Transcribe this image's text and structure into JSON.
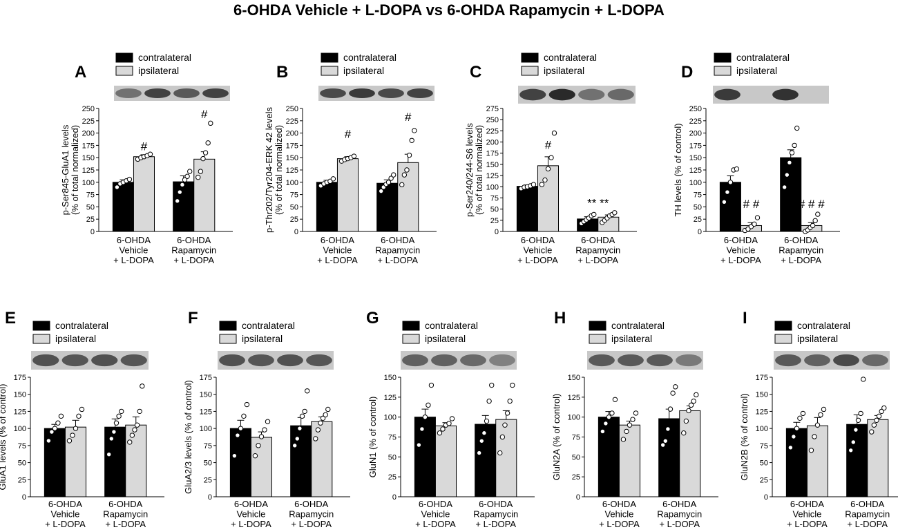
{
  "title": "6-OHDA Vehicle + L-DOPA vs 6-OHDA Rapamycin + L-DOPA",
  "legend": {
    "contralateral": "contralateral",
    "ipsilateral": "ipsilateral"
  },
  "colors": {
    "contralateral": "#000000",
    "ipsilateral": "#d9d9d9",
    "blot_bg": "#c8c8c8",
    "blot_band": "#2a2a2a"
  },
  "group_labels": [
    [
      "6-OHDA",
      "Vehicle",
      "+ L-DOPA"
    ],
    [
      "6-OHDA",
      "Rapamycin",
      "+ L-DOPA"
    ]
  ],
  "chart_data": [
    {
      "letter": "A",
      "type": "bar",
      "ylabel": [
        "p-Ser845-GluA1 levels",
        "(% of total normalized)"
      ],
      "ylim": [
        0,
        250
      ],
      "ticks": [
        0,
        25,
        50,
        75,
        100,
        125,
        150,
        175,
        200,
        225,
        250
      ],
      "blot": [
        0.55,
        0.85,
        0.7,
        0.85
      ],
      "series": [
        {
          "name": "contralateral",
          "values": [
            100,
            101
          ],
          "errors": [
            5,
            12
          ],
          "points": [
            [
              90,
              97,
              100,
              103,
              106
            ],
            [
              62,
              80,
              95,
              105,
              112,
              122
            ]
          ]
        },
        {
          "name": "ipsilateral",
          "values": [
            152,
            147
          ],
          "errors": [
            4,
            15
          ],
          "points": [
            [
              147,
              150,
              152,
              154,
              157
            ],
            [
              110,
              122,
              148,
              160,
              180,
              220
            ]
          ]
        }
      ],
      "annotations": [
        {
          "text": "#",
          "group": 0,
          "series": 1,
          "y": 165
        },
        {
          "text": "#",
          "group": 1,
          "series": 1,
          "y": 230
        }
      ]
    },
    {
      "letter": "B",
      "type": "bar",
      "ylabel": [
        "p-Thr202/Tyr204-ERK 42 levels",
        "(% of total normalized)"
      ],
      "ylim": [
        0,
        250
      ],
      "ticks": [
        0,
        25,
        50,
        75,
        100,
        125,
        150,
        175,
        200,
        225,
        250
      ],
      "blot": [
        0.8,
        0.9,
        0.8,
        0.85
      ],
      "series": [
        {
          "name": "contralateral",
          "values": [
            100,
            98
          ],
          "errors": [
            4,
            7
          ],
          "points": [
            [
              93,
              97,
              100,
              102,
              107
            ],
            [
              82,
              90,
              96,
              100,
              108,
              115
            ]
          ]
        },
        {
          "name": "ipsilateral",
          "values": [
            148,
            140
          ],
          "errors": [
            4,
            17
          ],
          "points": [
            [
              143,
              146,
              148,
              150,
              153
            ],
            [
              95,
              115,
              125,
              155,
              185,
              205
            ]
          ]
        }
      ],
      "annotations": [
        {
          "text": "#",
          "group": 0,
          "series": 1,
          "y": 190
        },
        {
          "text": "#",
          "group": 1,
          "series": 1,
          "y": 225
        }
      ]
    },
    {
      "letter": "C",
      "type": "bar",
      "ylabel": [
        "p-Ser240/244-S6 levels",
        "(% of total normalized)"
      ],
      "ylim": [
        0,
        275
      ],
      "ticks": [
        0,
        25,
        50,
        75,
        100,
        125,
        150,
        175,
        200,
        225,
        250,
        275
      ],
      "blot": [
        0.85,
        1.0,
        0.55,
        0.6
      ],
      "series": [
        {
          "name": "contralateral",
          "values": [
            101,
            28
          ],
          "errors": [
            3,
            5
          ],
          "points": [
            [
              96,
              99,
              100,
              102,
              105
            ],
            [
              18,
              22,
              26,
              30,
              35,
              38
            ]
          ]
        },
        {
          "name": "ipsilateral",
          "values": [
            147,
            32
          ],
          "errors": [
            20,
            5
          ],
          "points": [
            [
              105,
              115,
              140,
              165,
              220
            ],
            [
              20,
              25,
              30,
              35,
              38,
              42
            ]
          ]
        }
      ],
      "annotations": [
        {
          "text": "#",
          "group": 0,
          "series": 1,
          "y": 185
        },
        {
          "text": "** **",
          "group": 1,
          "series": 0.5,
          "y": 55
        }
      ]
    },
    {
      "letter": "D",
      "type": "bar",
      "ylabel": [
        "TH levels (% of control)"
      ],
      "ylim": [
        0,
        250
      ],
      "ticks": [
        0,
        25,
        50,
        75,
        100,
        125,
        150,
        175,
        200,
        225,
        250
      ],
      "blot": [
        0.9,
        0.05,
        0.95,
        0.05
      ],
      "series": [
        {
          "name": "contralateral",
          "values": [
            100,
            150
          ],
          "errors": [
            13,
            16
          ],
          "points": [
            [
              60,
              80,
              100,
              125,
              127
            ],
            [
              90,
              115,
              140,
              160,
              175,
              210
            ]
          ]
        },
        {
          "name": "ipsilateral",
          "values": [
            12,
            12
          ],
          "errors": [
            6,
            6
          ],
          "points": [
            [
              2,
              5,
              10,
              15,
              28
            ],
            [
              0,
              3,
              8,
              12,
              22,
              35
            ]
          ]
        }
      ],
      "annotations": [
        {
          "text": "# #",
          "group": 0,
          "series": 1,
          "y": 48
        },
        {
          "text": "# # #",
          "group": 1,
          "series": 1,
          "y": 48
        }
      ]
    },
    {
      "letter": "E",
      "type": "bar",
      "ylabel": [
        "GluA1 levels (% of control)"
      ],
      "ylim": [
        0,
        175
      ],
      "ticks": [
        0,
        25,
        50,
        75,
        100,
        125,
        150,
        175
      ],
      "blot": [
        0.75,
        0.72,
        0.75,
        0.72
      ],
      "series": [
        {
          "name": "contralateral",
          "values": [
            100,
            102
          ],
          "errors": [
            6,
            12
          ],
          "points": [
            [
              82,
              95,
              100,
              108,
              118
            ],
            [
              62,
              85,
              95,
              108,
              118,
              125
            ]
          ]
        },
        {
          "name": "ipsilateral",
          "values": [
            102,
            105
          ],
          "errors": [
            10,
            12
          ],
          "points": [
            [
              82,
              90,
              100,
              118,
              128
            ],
            [
              80,
              90,
              98,
              105,
              125,
              162
            ]
          ]
        }
      ],
      "annotations": []
    },
    {
      "letter": "F",
      "type": "bar",
      "ylabel": [
        "GluA2/3 levels (% of control)"
      ],
      "ylim": [
        0,
        175
      ],
      "ticks": [
        0,
        25,
        50,
        75,
        100,
        125,
        150,
        175
      ],
      "blot": [
        0.75,
        0.72,
        0.75,
        0.72
      ],
      "series": [
        {
          "name": "contralateral",
          "values": [
            100,
            104
          ],
          "errors": [
            12,
            12
          ],
          "points": [
            [
              60,
              90,
              100,
              118,
              135
            ],
            [
              75,
              85,
              100,
              118,
              125,
              155
            ]
          ]
        },
        {
          "name": "ipsilateral",
          "values": [
            87,
            110
          ],
          "errors": [
            8,
            7
          ],
          "points": [
            [
              60,
              75,
              88,
              98,
              110
            ],
            [
              85,
              98,
              108,
              115,
              120,
              128
            ]
          ]
        }
      ],
      "annotations": []
    },
    {
      "letter": "G",
      "type": "bar",
      "ylabel": [
        "GluN1 (% of control)"
      ],
      "ylim": [
        0,
        150
      ],
      "ticks": [
        0,
        25,
        50,
        75,
        100,
        125,
        150
      ],
      "blot": [
        0.65,
        0.65,
        0.6,
        0.45
      ],
      "series": [
        {
          "name": "contralateral",
          "values": [
            100,
            91
          ],
          "errors": [
            10,
            11
          ],
          "points": [
            [
              65,
              85,
              100,
              115,
              140
            ],
            [
              55,
              70,
              80,
              95,
              120,
              140
            ]
          ]
        },
        {
          "name": "ipsilateral",
          "values": [
            89,
            97
          ],
          "errors": [
            4,
            11
          ],
          "points": [
            [
              80,
              85,
              90,
              92,
              98
            ],
            [
              55,
              75,
              90,
              105,
              120,
              140
            ]
          ]
        }
      ],
      "annotations": []
    },
    {
      "letter": "H",
      "type": "bar",
      "ylabel": [
        "GluN2A (% of control)"
      ],
      "ylim": [
        0,
        150
      ],
      "ticks": [
        0,
        25,
        50,
        75,
        100,
        125,
        150
      ],
      "blot": [
        0.7,
        0.7,
        0.7,
        0.5
      ],
      "series": [
        {
          "name": "contralateral",
          "values": [
            100,
            98
          ],
          "errors": [
            7,
            12
          ],
          "points": [
            [
              82,
              92,
              100,
              105,
              122
            ],
            [
              65,
              70,
              85,
              110,
              130,
              138
            ]
          ]
        },
        {
          "name": "ipsilateral",
          "values": [
            90,
            108
          ],
          "errors": [
            5,
            6
          ],
          "points": [
            [
              72,
              82,
              90,
              97,
              105
            ],
            [
              80,
              95,
              108,
              115,
              120,
              128
            ]
          ]
        }
      ],
      "annotations": []
    },
    {
      "letter": "I",
      "type": "bar",
      "ylabel": [
        "GluN2B (% of control)"
      ],
      "ylim": [
        0,
        175
      ],
      "ticks": [
        0,
        25,
        50,
        75,
        100,
        125,
        150,
        175
      ],
      "blot": [
        0.7,
        0.65,
        0.8,
        0.6
      ],
      "series": [
        {
          "name": "contralateral",
          "values": [
            100,
            106
          ],
          "errors": [
            9,
            14
          ],
          "points": [
            [
              72,
              88,
              100,
              115,
              122
            ],
            [
              68,
              80,
              98,
              112,
              122,
              172
            ]
          ]
        },
        {
          "name": "ipsilateral",
          "values": [
            104,
            113
          ],
          "errors": [
            12,
            6
          ],
          "points": [
            [
              68,
              88,
              105,
              120,
              128
            ],
            [
              95,
              105,
              112,
              118,
              125,
              130
            ]
          ]
        }
      ],
      "annotations": []
    }
  ]
}
